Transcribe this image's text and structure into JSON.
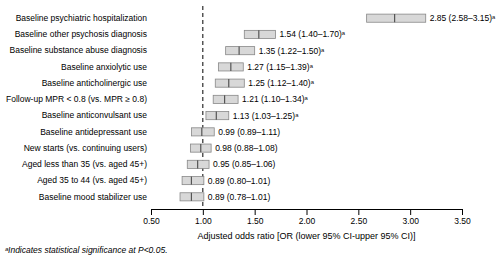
{
  "chart_data": {
    "type": "forest",
    "orientation": "horizontal",
    "categories": [
      "Baseline mood stabilizer use",
      "Aged 35 to 44 (vs. aged 45+)",
      "Aged less than 35 (vs. aged 45+)",
      "New starts (vs. continuing users)",
      "Baseline antidepressant use",
      "Baseline anticonvulsant use",
      "Follow-up MPR < 0.8 (vs. MPR ≥ 0.8)",
      "Baseline anticholinergic use",
      "Baseline anxiolytic use",
      "Baseline substance abuse diagnosis",
      "Baseline other psychosis diagnosis",
      "Baseline psychiatric hospitalization"
    ],
    "values": [
      0.89,
      0.89,
      0.95,
      0.98,
      0.99,
      1.13,
      1.21,
      1.25,
      1.27,
      1.35,
      1.54,
      2.85
    ],
    "ci_lower": [
      0.78,
      0.8,
      0.85,
      0.88,
      0.89,
      1.03,
      1.1,
      1.12,
      1.15,
      1.22,
      1.4,
      2.58
    ],
    "ci_upper": [
      1.01,
      1.01,
      1.06,
      1.08,
      1.11,
      1.25,
      1.34,
      1.4,
      1.39,
      1.5,
      1.7,
      3.15
    ],
    "value_labels": [
      "0.89 (0.78–1.01)",
      "0.89 (0.80–1.01)",
      "0.95 (0.85–1.06)",
      "0.98 (0.88–1.08)",
      "0.99 (0.89–1.11)",
      "1.13 (1.03–1.25)ᵃ",
      "1.21 (1.10–1.34)ᵃ",
      "1.25 (1.12–1.40)ᵃ",
      "1.27 (1.15–1.39)ᵃ",
      "1.35 (1.22–1.50)ᵃ",
      "1.54 (1.40–1.70)ᵃ",
      "2.85 (2.58–3.15)ᵃ"
    ],
    "data_labels": true,
    "color": "#d8d8d8",
    "ref_line": 1.0,
    "xlim": [
      0.5,
      3.5
    ],
    "xticks": [
      {
        "value": 0.5,
        "label": "0.50"
      },
      {
        "value": 1.0,
        "label": "1.00"
      },
      {
        "value": 1.5,
        "label": "1.50"
      },
      {
        "value": 2.0,
        "label": "2.00"
      },
      {
        "value": 2.5,
        "label": "2.50"
      },
      {
        "value": 3.0,
        "label": "3.00"
      },
      {
        "value": 3.5,
        "label": "3.50"
      }
    ],
    "xlabel": "Adjusted odds ratio [OR (lower 95% CI-upper 95% CI)]",
    "footnote": "ᵃIndicates statistical significance at P<0.05.",
    "grid": false
  }
}
